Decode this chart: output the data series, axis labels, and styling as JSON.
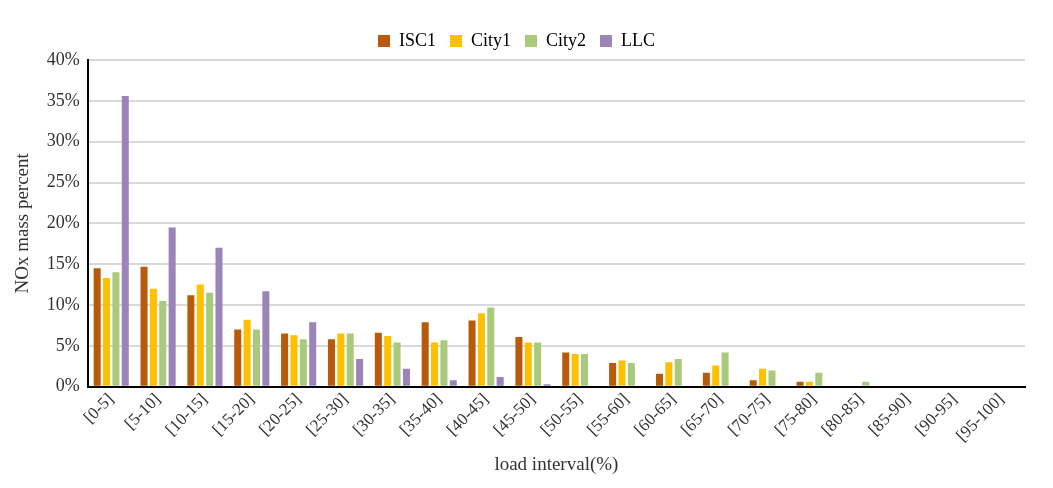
{
  "chart_data": {
    "type": "bar",
    "xlabel": "load interval(%)",
    "ylabel": "NOx mass percent",
    "categories": [
      "[0-5]",
      "[5-10]",
      "[10-15]",
      "[15-20]",
      "[20-25]",
      "[25-30]",
      "[30-35]",
      "[35-40]",
      "[40-45]",
      "[45-50]",
      "[50-55]",
      "[55-60]",
      "[60-65]",
      "[65-70]",
      "[70-75]",
      "[75-80]",
      "[80-85]",
      "[85-90]",
      "[90-95]",
      "[95-100]"
    ],
    "series": [
      {
        "name": "ISC1",
        "color": "#b85a0c",
        "values": [
          14.5,
          14.7,
          11.2,
          7,
          6.5,
          5.8,
          6.6,
          7.9,
          8.1,
          6.1,
          4.2,
          2.9,
          1.6,
          1.7,
          0.8,
          0.6,
          0,
          0,
          0,
          0
        ]
      },
      {
        "name": "City1",
        "color": "#ffc000",
        "values": [
          13.3,
          12,
          12.5,
          8.2,
          6.3,
          6.5,
          6.2,
          5.4,
          9,
          5.4,
          4,
          3.2,
          3,
          2.6,
          2.2,
          0.6,
          0,
          0,
          0,
          0
        ]
      },
      {
        "name": "City2",
        "color": "#a9ca7d",
        "values": [
          14,
          10.5,
          11.5,
          7,
          5.8,
          6.5,
          5.4,
          5.7,
          9.7,
          5.4,
          4,
          2.9,
          3.4,
          4.2,
          2,
          1.7,
          0.6,
          0,
          0,
          0
        ]
      },
      {
        "name": "LLC",
        "color": "#9b84b8",
        "values": [
          35.6,
          19.5,
          17,
          11.7,
          7.9,
          3.4,
          2.2,
          0.8,
          1.2,
          0.3,
          0,
          0,
          0,
          0,
          0,
          0,
          0,
          0,
          0,
          0
        ]
      }
    ],
    "ylim": [
      0,
      40
    ],
    "yticks": [
      {
        "value": 0,
        "label": "0%"
      },
      {
        "value": 5,
        "label": "5%"
      },
      {
        "value": 10,
        "label": "10%"
      },
      {
        "value": 15,
        "label": "15%"
      },
      {
        "value": 20,
        "label": "20%"
      },
      {
        "value": 25,
        "label": "25%"
      },
      {
        "value": 30,
        "label": "30%"
      },
      {
        "value": 35,
        "label": "35%"
      },
      {
        "value": 40,
        "label": "40%"
      }
    ],
    "grid": "y",
    "legend": "top"
  }
}
